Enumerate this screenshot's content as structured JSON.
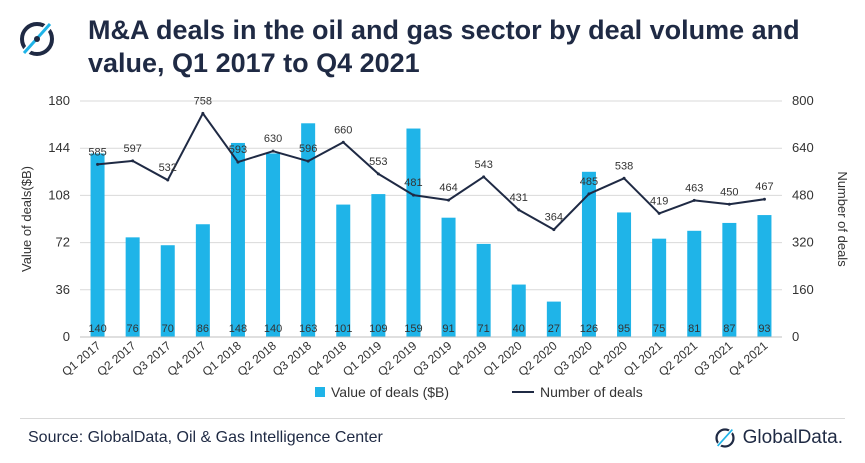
{
  "header": {
    "title_line1": "M&A deals in the oil and gas sector by deal volume and",
    "title_line2": "value, Q1 2017 to Q4 2021",
    "logo_icon": "globaldata-logo-icon"
  },
  "colors": {
    "bar": "#1fb4e8",
    "line": "#1f2a44",
    "grid": "#d9d9d9",
    "text": "#1f2a44"
  },
  "chart_data": {
    "type": "bar+line",
    "title": "M&A deals in the oil and gas sector by deal volume and value, Q1 2017 to Q4 2021",
    "categories": [
      "Q1 2017",
      "Q2 2017",
      "Q3 2017",
      "Q4 2017",
      "Q1 2018",
      "Q2 2018",
      "Q3 2018",
      "Q4 2018",
      "Q1 2019",
      "Q2 2019",
      "Q3 2019",
      "Q4 2019",
      "Q1 2020",
      "Q2 2020",
      "Q3 2020",
      "Q4 2020",
      "Q1 2021",
      "Q2 2021",
      "Q3 2021",
      "Q4 2021"
    ],
    "series": [
      {
        "name": "Value of deals ($B)",
        "type": "bar",
        "axis": "left",
        "values": [
          140,
          76,
          70,
          86,
          148,
          140,
          163,
          101,
          109,
          159,
          91,
          71,
          40,
          27,
          126,
          95,
          75,
          81,
          87,
          93
        ]
      },
      {
        "name": "Number of deals",
        "type": "line",
        "axis": "right",
        "values": [
          585,
          597,
          532,
          758,
          593,
          630,
          596,
          660,
          553,
          481,
          464,
          543,
          431,
          364,
          485,
          538,
          419,
          463,
          450,
          467
        ]
      }
    ],
    "ylabel_left": "Value of deals($B)",
    "ylabel_right": "Number of deals",
    "ylim_left": [
      0,
      180
    ],
    "yticks_left": [
      0,
      36,
      72,
      108,
      144,
      180
    ],
    "ylim_right": [
      0,
      800
    ],
    "yticks_right": [
      0,
      160,
      320,
      480,
      640,
      800
    ],
    "legend_position": "bottom"
  },
  "legend": {
    "bar_label": "Value of deals ($B)",
    "line_label": "Number of deals"
  },
  "footer": {
    "source": "Source: GlobalData, Oil & Gas Intelligence Center",
    "brand": "GlobalData."
  }
}
